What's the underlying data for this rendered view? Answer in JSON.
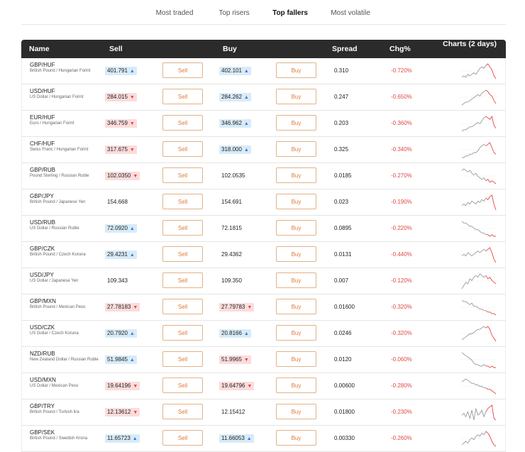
{
  "tabs": [
    {
      "label": "Most traded",
      "active": false
    },
    {
      "label": "Top risers",
      "active": false
    },
    {
      "label": "Top fallers",
      "active": true
    },
    {
      "label": "Most volatile",
      "active": false
    }
  ],
  "headers": {
    "name": "Name",
    "sell": "Sell",
    "buy": "Buy",
    "spread": "Spread",
    "chg": "Chg%",
    "charts": "Charts (2 days)"
  },
  "buttons": {
    "sell": "Sell",
    "buy": "Buy"
  },
  "colors": {
    "up_bg": "#d8ebf8",
    "down_bg": "#fbdcdc",
    "accent": "#e07b39",
    "negative": "#e04848",
    "header_bg": "#2b2b2b"
  },
  "rows": [
    {
      "symbol": "GBP/HUF",
      "name": "British Pound / Hungarian Forint",
      "sell": "401.791",
      "sell_dir": "up",
      "buy": "402.101",
      "buy_dir": "up",
      "spread": "0.310",
      "chg": "-0.720%",
      "spark": [
        3,
        4,
        3,
        5,
        4,
        5,
        6,
        5,
        7,
        9,
        10,
        9,
        11,
        12,
        10,
        8,
        4,
        2
      ]
    },
    {
      "symbol": "USD/HUF",
      "name": "US Dollar / Hungarian Forint",
      "sell": "284.015",
      "sell_dir": "down",
      "buy": "284.262",
      "buy_dir": "up",
      "spread": "0.247",
      "chg": "-0.650%",
      "spark": [
        2,
        3,
        4,
        4,
        5,
        6,
        7,
        8,
        9,
        8,
        10,
        11,
        12,
        11,
        9,
        8,
        5,
        3
      ]
    },
    {
      "symbol": "EUR/HUF",
      "name": "Euro / Hungarian Forint",
      "sell": "346.759",
      "sell_dir": "down",
      "buy": "346.962",
      "buy_dir": "up",
      "spread": "0.203",
      "chg": "-0.360%",
      "spark": [
        2,
        3,
        3,
        4,
        5,
        5,
        6,
        7,
        8,
        7,
        9,
        11,
        12,
        11,
        10,
        12,
        6,
        4
      ]
    },
    {
      "symbol": "CHF/HUF",
      "name": "Swiss Franc / Hungarian Forint",
      "sell": "317.675",
      "sell_dir": "down",
      "buy": "318.000",
      "buy_dir": "up",
      "spread": "0.325",
      "chg": "-0.340%",
      "spark": [
        3,
        3,
        4,
        4,
        5,
        5,
        6,
        6,
        7,
        9,
        10,
        11,
        10,
        11,
        12,
        9,
        6,
        5
      ]
    },
    {
      "symbol": "GBP/RUB",
      "name": "Pound Sterling / Russian Ruble",
      "sell": "102.0350",
      "sell_dir": "down",
      "buy": "102.0535",
      "buy_dir": "none",
      "spread": "0.0185",
      "chg": "-0.270%",
      "spark": [
        11,
        12,
        11,
        10,
        11,
        9,
        8,
        9,
        7,
        6,
        5,
        6,
        4,
        5,
        3,
        4,
        3,
        2
      ]
    },
    {
      "symbol": "GBP/JPY",
      "name": "British Pound / Japanese Yen",
      "sell": "154.668",
      "sell_dir": "none",
      "buy": "154.691",
      "buy_dir": "none",
      "spread": "0.023",
      "chg": "-0.190%",
      "spark": [
        5,
        6,
        5,
        7,
        6,
        8,
        7,
        6,
        8,
        7,
        9,
        8,
        10,
        9,
        11,
        12,
        6,
        2
      ]
    },
    {
      "symbol": "USD/RUB",
      "name": "US Dollar / Russian Ruble",
      "sell": "72.0920",
      "sell_dir": "up",
      "buy": "72.1815",
      "buy_dir": "none",
      "spread": "0.0895",
      "chg": "-0.220%",
      "spark": [
        12,
        11,
        11,
        10,
        9,
        9,
        8,
        7,
        7,
        6,
        5,
        5,
        4,
        4,
        3,
        4,
        3,
        3
      ]
    },
    {
      "symbol": "GBP/CZK",
      "name": "British Pound / Czech Koruna",
      "sell": "29.4231",
      "sell_dir": "up",
      "buy": "29.4362",
      "buy_dir": "none",
      "spread": "0.0131",
      "chg": "-0.440%",
      "spark": [
        7,
        8,
        7,
        9,
        8,
        7,
        8,
        9,
        10,
        9,
        10,
        11,
        10,
        11,
        12,
        9,
        5,
        3
      ]
    },
    {
      "symbol": "USD/JPY",
      "name": "US Dollar / Japanese Yen",
      "sell": "109.343",
      "sell_dir": "none",
      "buy": "109.350",
      "buy_dir": "none",
      "spread": "0.007",
      "chg": "-0.120%",
      "spark": [
        3,
        5,
        7,
        6,
        9,
        8,
        10,
        11,
        10,
        12,
        11,
        10,
        11,
        9,
        10,
        8,
        7,
        6
      ]
    },
    {
      "symbol": "GBP/MXN",
      "name": "British Pound / Mexican Peso",
      "sell": "27.78183",
      "sell_dir": "down",
      "buy": "27.79783",
      "buy_dir": "down",
      "spread": "0.01600",
      "chg": "-0.320%",
      "spark": [
        12,
        11,
        11,
        10,
        9,
        10,
        8,
        8,
        7,
        6,
        6,
        5,
        5,
        4,
        4,
        3,
        3,
        2
      ]
    },
    {
      "symbol": "USD/CZK",
      "name": "US Dollar / Czech Koruna",
      "sell": "20.7920",
      "sell_dir": "up",
      "buy": "20.8166",
      "buy_dir": "up",
      "spread": "0.0246",
      "chg": "-0.320%",
      "spark": [
        3,
        4,
        5,
        6,
        7,
        7,
        8,
        9,
        10,
        10,
        11,
        12,
        11,
        12,
        10,
        6,
        4,
        2
      ]
    },
    {
      "symbol": "NZD/RUB",
      "name": "New Zealand Dollar / Russian Ruble",
      "sell": "51.9845",
      "sell_dir": "up",
      "buy": "51.9965",
      "buy_dir": "down",
      "spread": "0.0120",
      "chg": "-0.060%",
      "spark": [
        12,
        11,
        10,
        9,
        8,
        7,
        5,
        4,
        4,
        3,
        3,
        4,
        3,
        3,
        2,
        3,
        2,
        2
      ]
    },
    {
      "symbol": "USD/MXN",
      "name": "US Dollar / Mexican Peso",
      "sell": "19.64196",
      "sell_dir": "down",
      "buy": "19.64796",
      "buy_dir": "down",
      "spread": "0.00600",
      "chg": "-0.280%",
      "spark": [
        10,
        11,
        12,
        11,
        10,
        9,
        9,
        8,
        8,
        7,
        7,
        6,
        6,
        5,
        5,
        4,
        3,
        2
      ]
    },
    {
      "symbol": "GBP/TRY",
      "name": "British Pound / Turkish lira",
      "sell": "12.13612",
      "sell_dir": "down",
      "buy": "12.15412",
      "buy_dir": "none",
      "spread": "0.01800",
      "chg": "-0.230%",
      "spark": [
        6,
        7,
        5,
        8,
        4,
        9,
        3,
        10,
        6,
        7,
        9,
        5,
        8,
        10,
        11,
        12,
        4,
        3
      ]
    },
    {
      "symbol": "GBP/SEK",
      "name": "British Pound / Swedish Krona",
      "sell": "11.65723",
      "sell_dir": "up",
      "buy": "11.66053",
      "buy_dir": "up",
      "spread": "0.00330",
      "chg": "-0.260%",
      "spark": [
        4,
        5,
        6,
        5,
        7,
        8,
        7,
        9,
        10,
        9,
        11,
        10,
        12,
        11,
        9,
        6,
        4,
        3
      ]
    }
  ]
}
